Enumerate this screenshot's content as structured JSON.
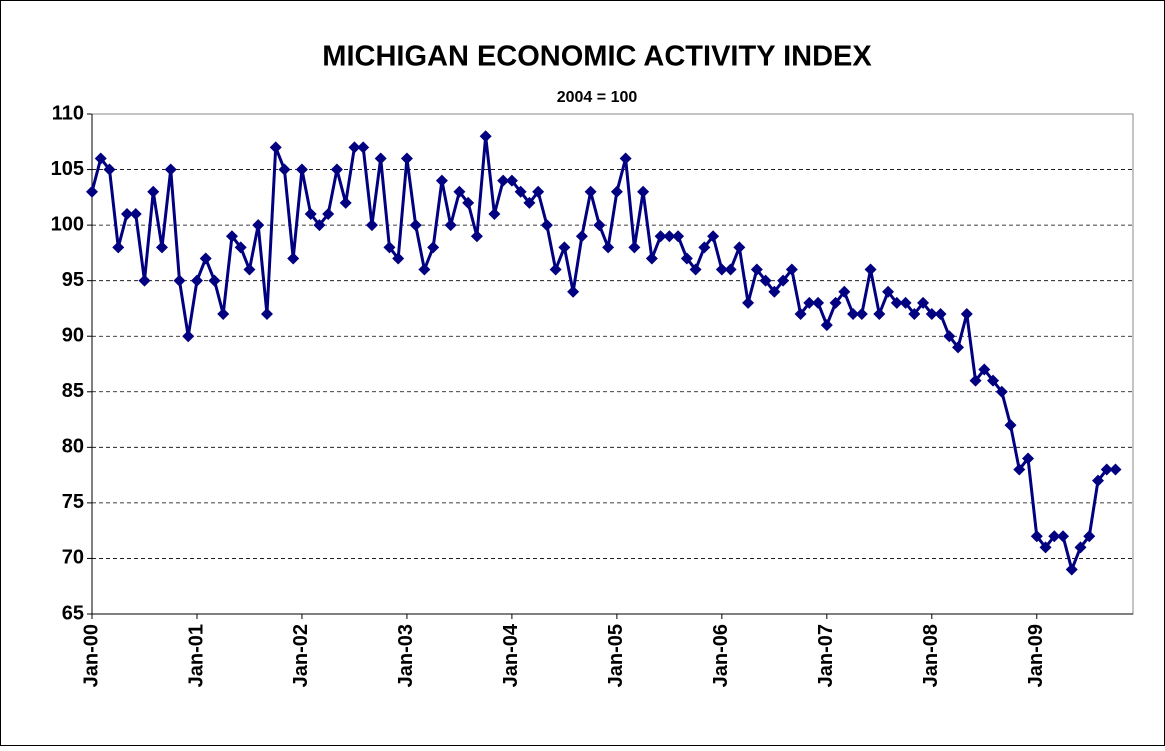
{
  "chart_data": {
    "type": "line",
    "title": "MICHIGAN ECONOMIC ACTIVITY INDEX",
    "subtitle": "2004 = 100",
    "categories": [
      "Jan-00",
      null,
      null,
      null,
      null,
      null,
      null,
      null,
      null,
      null,
      null,
      null,
      "Jan-01",
      null,
      null,
      null,
      null,
      null,
      null,
      null,
      null,
      null,
      null,
      null,
      "Jan-02",
      null,
      null,
      null,
      null,
      null,
      null,
      null,
      null,
      null,
      null,
      null,
      "Jan-03",
      null,
      null,
      null,
      null,
      null,
      null,
      null,
      null,
      null,
      null,
      null,
      "Jan-04",
      null,
      null,
      null,
      null,
      null,
      null,
      null,
      null,
      null,
      null,
      null,
      "Jan-05",
      null,
      null,
      null,
      null,
      null,
      null,
      null,
      null,
      null,
      null,
      null,
      "Jan-06",
      null,
      null,
      null,
      null,
      null,
      null,
      null,
      null,
      null,
      null,
      null,
      "Jan-07",
      null,
      null,
      null,
      null,
      null,
      null,
      null,
      null,
      null,
      null,
      null,
      "Jan-08",
      null,
      null,
      null,
      null,
      null,
      null,
      null,
      null,
      null,
      null,
      null,
      "Jan-09",
      null,
      null,
      null,
      null,
      null,
      null,
      null,
      null,
      null,
      null,
      null
    ],
    "series": [
      {
        "name": "Michigan Economic Activity Index",
        "color": "#000080",
        "values": [
          103,
          106,
          105,
          98,
          101,
          101,
          95,
          103,
          98,
          105,
          95,
          90,
          95,
          97,
          95,
          92,
          99,
          98,
          96,
          100,
          92,
          107,
          105,
          97,
          105,
          101,
          100,
          101,
          105,
          102,
          107,
          107,
          100,
          106,
          98,
          97,
          106,
          100,
          96,
          98,
          104,
          100,
          103,
          102,
          99,
          108,
          101,
          104,
          104,
          103,
          102,
          103,
          100,
          96,
          98,
          94,
          99,
          103,
          100,
          98,
          103,
          106,
          98,
          103,
          97,
          99,
          99,
          99,
          97,
          96,
          98,
          99,
          96,
          96,
          98,
          93,
          96,
          95,
          94,
          95,
          96,
          92,
          93,
          93,
          91,
          93,
          94,
          92,
          92,
          96,
          92,
          94,
          93,
          93,
          92,
          93,
          92,
          92,
          90,
          89,
          92,
          86,
          87,
          86,
          85,
          82,
          78,
          79,
          72,
          71,
          72,
          72,
          69,
          71,
          72,
          77,
          78,
          78,
          null,
          null
        ]
      }
    ],
    "ylim": [
      65,
      110
    ],
    "yticks": [
      65,
      70,
      75,
      80,
      85,
      90,
      95,
      100,
      105,
      110
    ],
    "grid": true
  }
}
